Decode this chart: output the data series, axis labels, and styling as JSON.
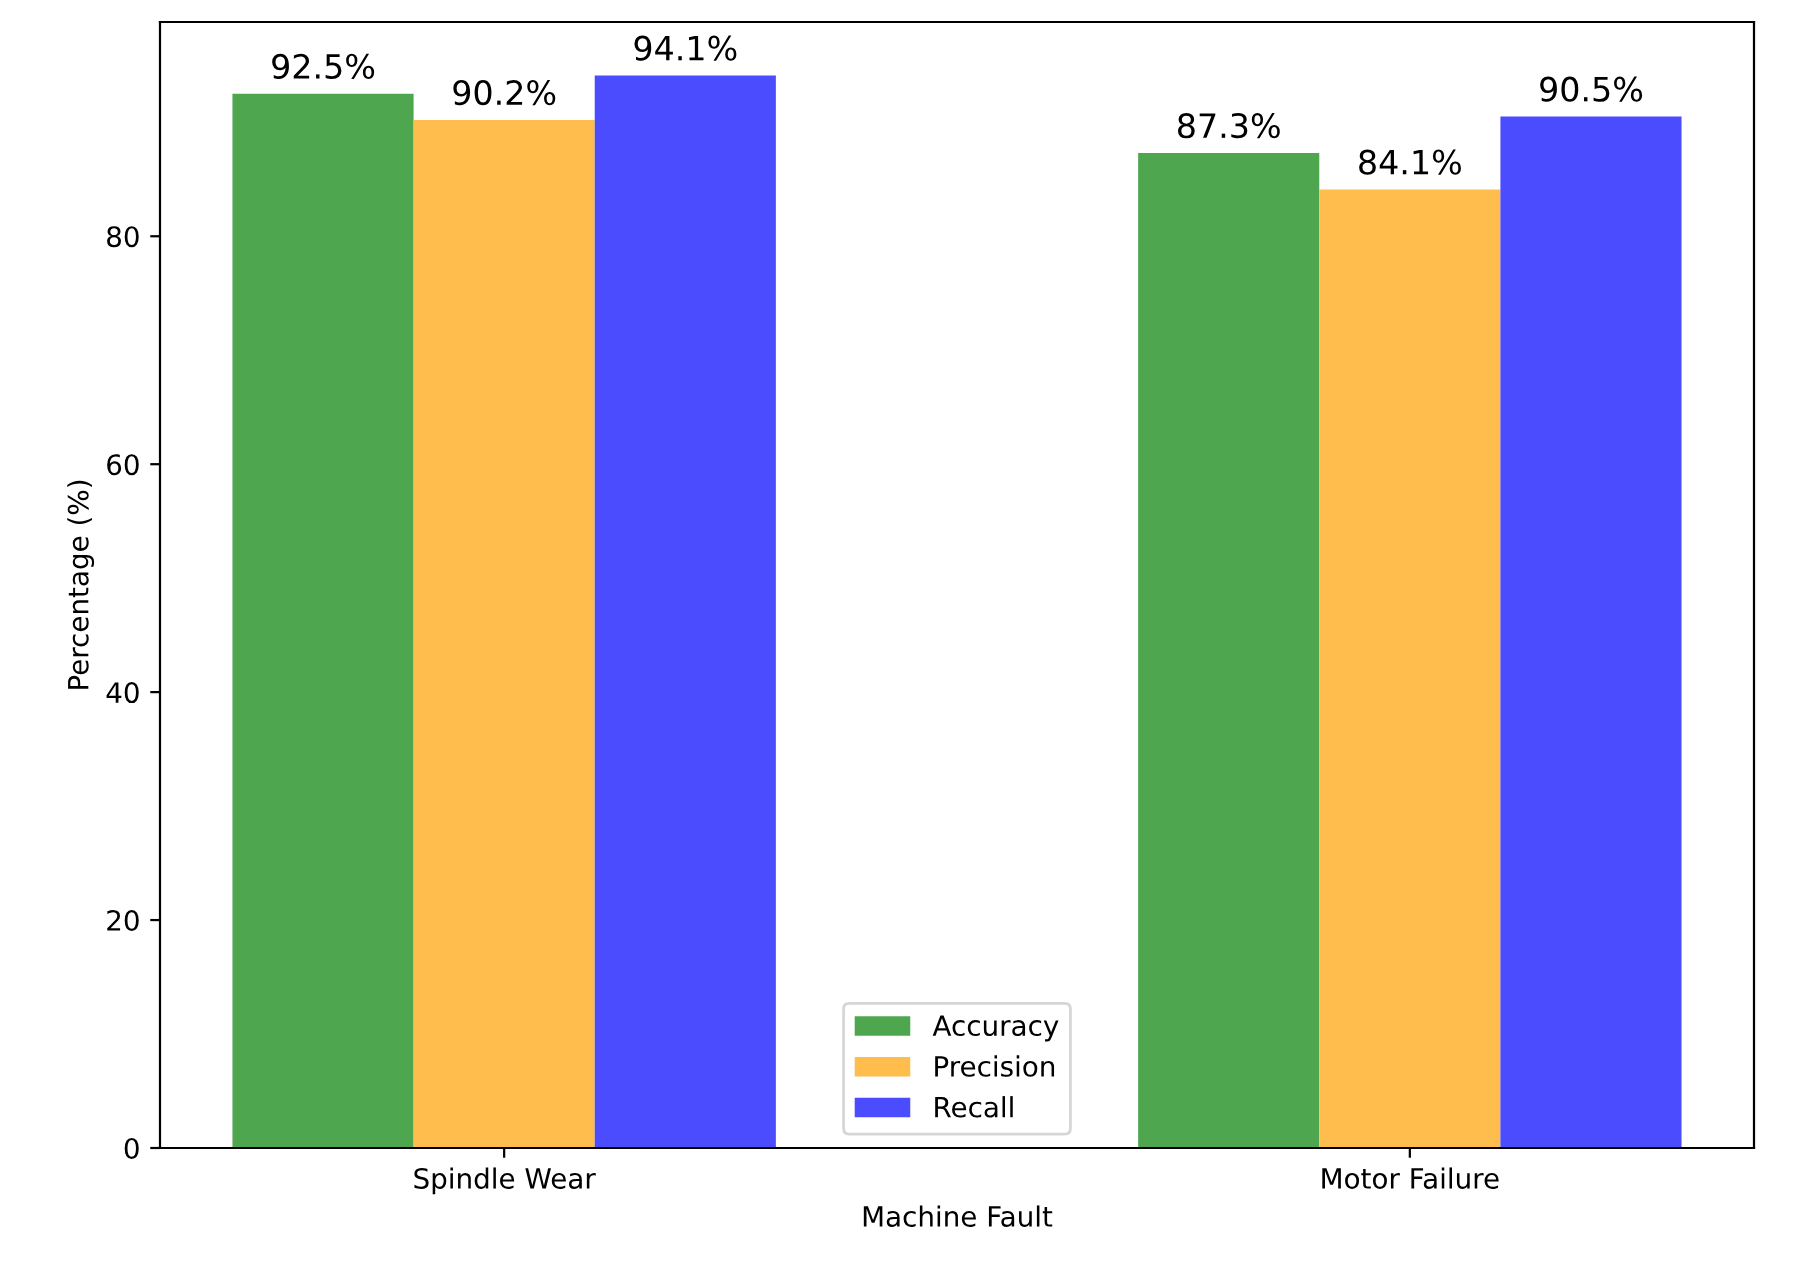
{
  "chart_data": {
    "type": "bar",
    "xlabel": "Machine Fault",
    "ylabel": "Percentage (%)",
    "categories": [
      "Spindle Wear",
      "Motor Failure"
    ],
    "series": [
      {
        "name": "Accuracy",
        "color": "#4ea64e",
        "values": [
          92.5,
          87.3
        ],
        "value_labels": [
          "92.5%",
          "87.3%"
        ]
      },
      {
        "name": "Precision",
        "color": "#ffbd4d",
        "values": [
          90.2,
          84.1
        ],
        "value_labels": [
          "90.2%",
          "84.1%"
        ]
      },
      {
        "name": "Recall",
        "color": "#4c4cff",
        "values": [
          94.1,
          90.5
        ],
        "value_labels": [
          "94.1%",
          "90.5%"
        ]
      }
    ],
    "ylim": [
      0,
      98.8
    ],
    "yticks": [
      0,
      20,
      40,
      60,
      80
    ],
    "grid": false,
    "legend": "bottom"
  }
}
